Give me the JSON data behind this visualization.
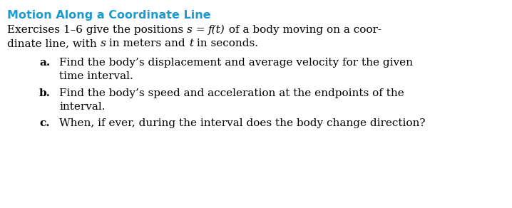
{
  "title": "Motion Along a Coordinate Line",
  "title_color": "#1B9BD1",
  "background_color": "#FFFFFF",
  "title_fontsize": 11.5,
  "body_fontsize": 11.0,
  "items": [
    {
      "label": "a.",
      "line1": "Find the body’s displacement and average velocity for the given",
      "line2": "time interval."
    },
    {
      "label": "b.",
      "line1": "Find the body’s speed and acceleration at the endpoints of the",
      "line2": "interval."
    },
    {
      "label": "c.",
      "line1": "When, if ever, during the interval does the body change direction?"
    }
  ]
}
